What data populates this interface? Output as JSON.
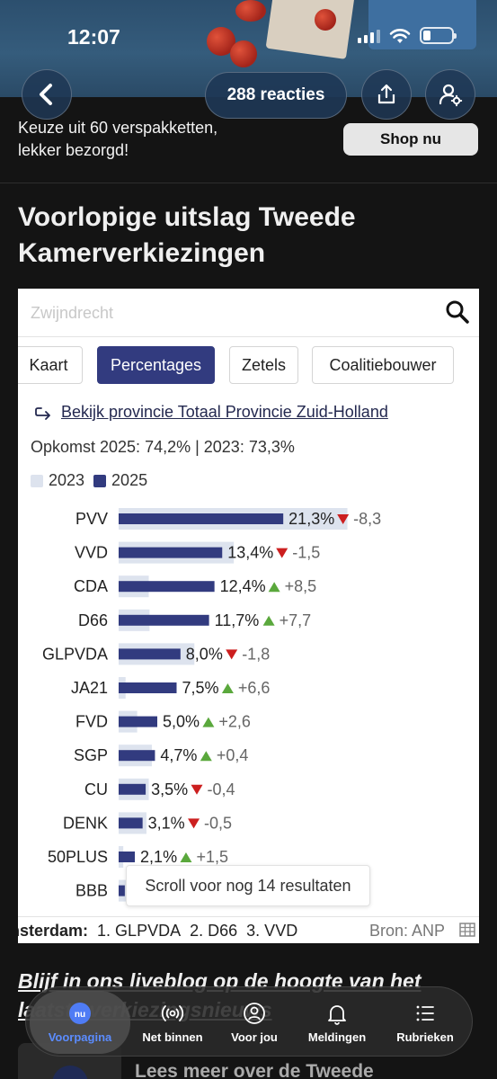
{
  "status_bar": {
    "time": "12:07"
  },
  "article_header": {
    "reactions_label": "288 reacties",
    "back_icon": "chevron-left-icon",
    "share_icon": "share-icon",
    "account_icon": "account-settings-icon"
  },
  "ad": {
    "text_line1": "Keuze uit 60 verspakketten,",
    "text_line2": "lekker bezorgd!",
    "button_label": "Shop nu"
  },
  "headline": "Voorlopige uitslag Tweede Kamerverkiezingen",
  "widget": {
    "search": {
      "placeholder": "Zwijndrecht"
    },
    "tabs": [
      {
        "label": "Kaart",
        "active": false
      },
      {
        "label": "Percentages",
        "active": true
      },
      {
        "label": "Zetels",
        "active": false
      },
      {
        "label": "Coalitiebouwer",
        "active": false
      }
    ],
    "province_link": "Bekijk provincie Totaal Provincie Zuid-Holland",
    "turnout": "Opkomst 2025: 74,2% | 2023: 73,3%",
    "legend": [
      {
        "label": "2023",
        "color": "#dde3ee"
      },
      {
        "label": "2025",
        "color": "#323b7f"
      }
    ],
    "scroll_hint": "Scroll voor nog 14 resultaten",
    "ticker": {
      "city": "nsterdam:",
      "items": [
        "1. GLPVDA",
        "2. D66",
        "3. VVD"
      ]
    },
    "source": "Bron: ANP"
  },
  "chart_data": {
    "type": "bar",
    "orientation": "horizontal",
    "categories": [
      "PVV",
      "VVD",
      "CDA",
      "D66",
      "GLPVDA",
      "JA21",
      "FVD",
      "SGP",
      "CU",
      "DENK",
      "50PLUS",
      "BBB"
    ],
    "series": [
      {
        "name": "2023",
        "values": [
          29.6,
          14.9,
          3.9,
          4.0,
          9.8,
          0.9,
          2.4,
          4.3,
          3.9,
          3.6,
          0.6,
          4.5
        ]
      },
      {
        "name": "2025",
        "values": [
          21.3,
          13.4,
          12.4,
          11.7,
          8.0,
          7.5,
          5.0,
          4.7,
          3.5,
          3.1,
          2.1,
          0.8
        ]
      }
    ],
    "value_labels": [
      "21,3%",
      "13,4%",
      "12,4%",
      "11,7%",
      "8,0%",
      "7,5%",
      "5,0%",
      "4,7%",
      "3,5%",
      "3,1%",
      "2,1%",
      ""
    ],
    "change_labels": [
      "-8,3",
      "-1,5",
      "+8,5",
      "+7,7",
      "-1,8",
      "+6,6",
      "+2,6",
      "+0,4",
      "-0,4",
      "-0,5",
      "+1,5",
      ""
    ],
    "change_direction": [
      "down",
      "down",
      "up",
      "up",
      "down",
      "up",
      "up",
      "up",
      "down",
      "down",
      "up",
      ""
    ],
    "colors": {
      "up": "#5aa83c",
      "down": "#cc1f1f"
    }
  },
  "liveblog_text": "Blijf in ons liveblog op de hoogte van het laatste verkiezingsnieuws",
  "teaser_text": "Lees meer over de Tweede",
  "bottom_nav": [
    {
      "label": "Voorpagina",
      "icon": "nu-logo-icon",
      "active": true
    },
    {
      "label": "Net binnen",
      "icon": "broadcast-icon",
      "active": false
    },
    {
      "label": "Voor jou",
      "icon": "for-you-icon",
      "active": false
    },
    {
      "label": "Meldingen",
      "icon": "bell-icon",
      "active": false
    },
    {
      "label": "Rubrieken",
      "icon": "list-icon",
      "active": false
    }
  ]
}
